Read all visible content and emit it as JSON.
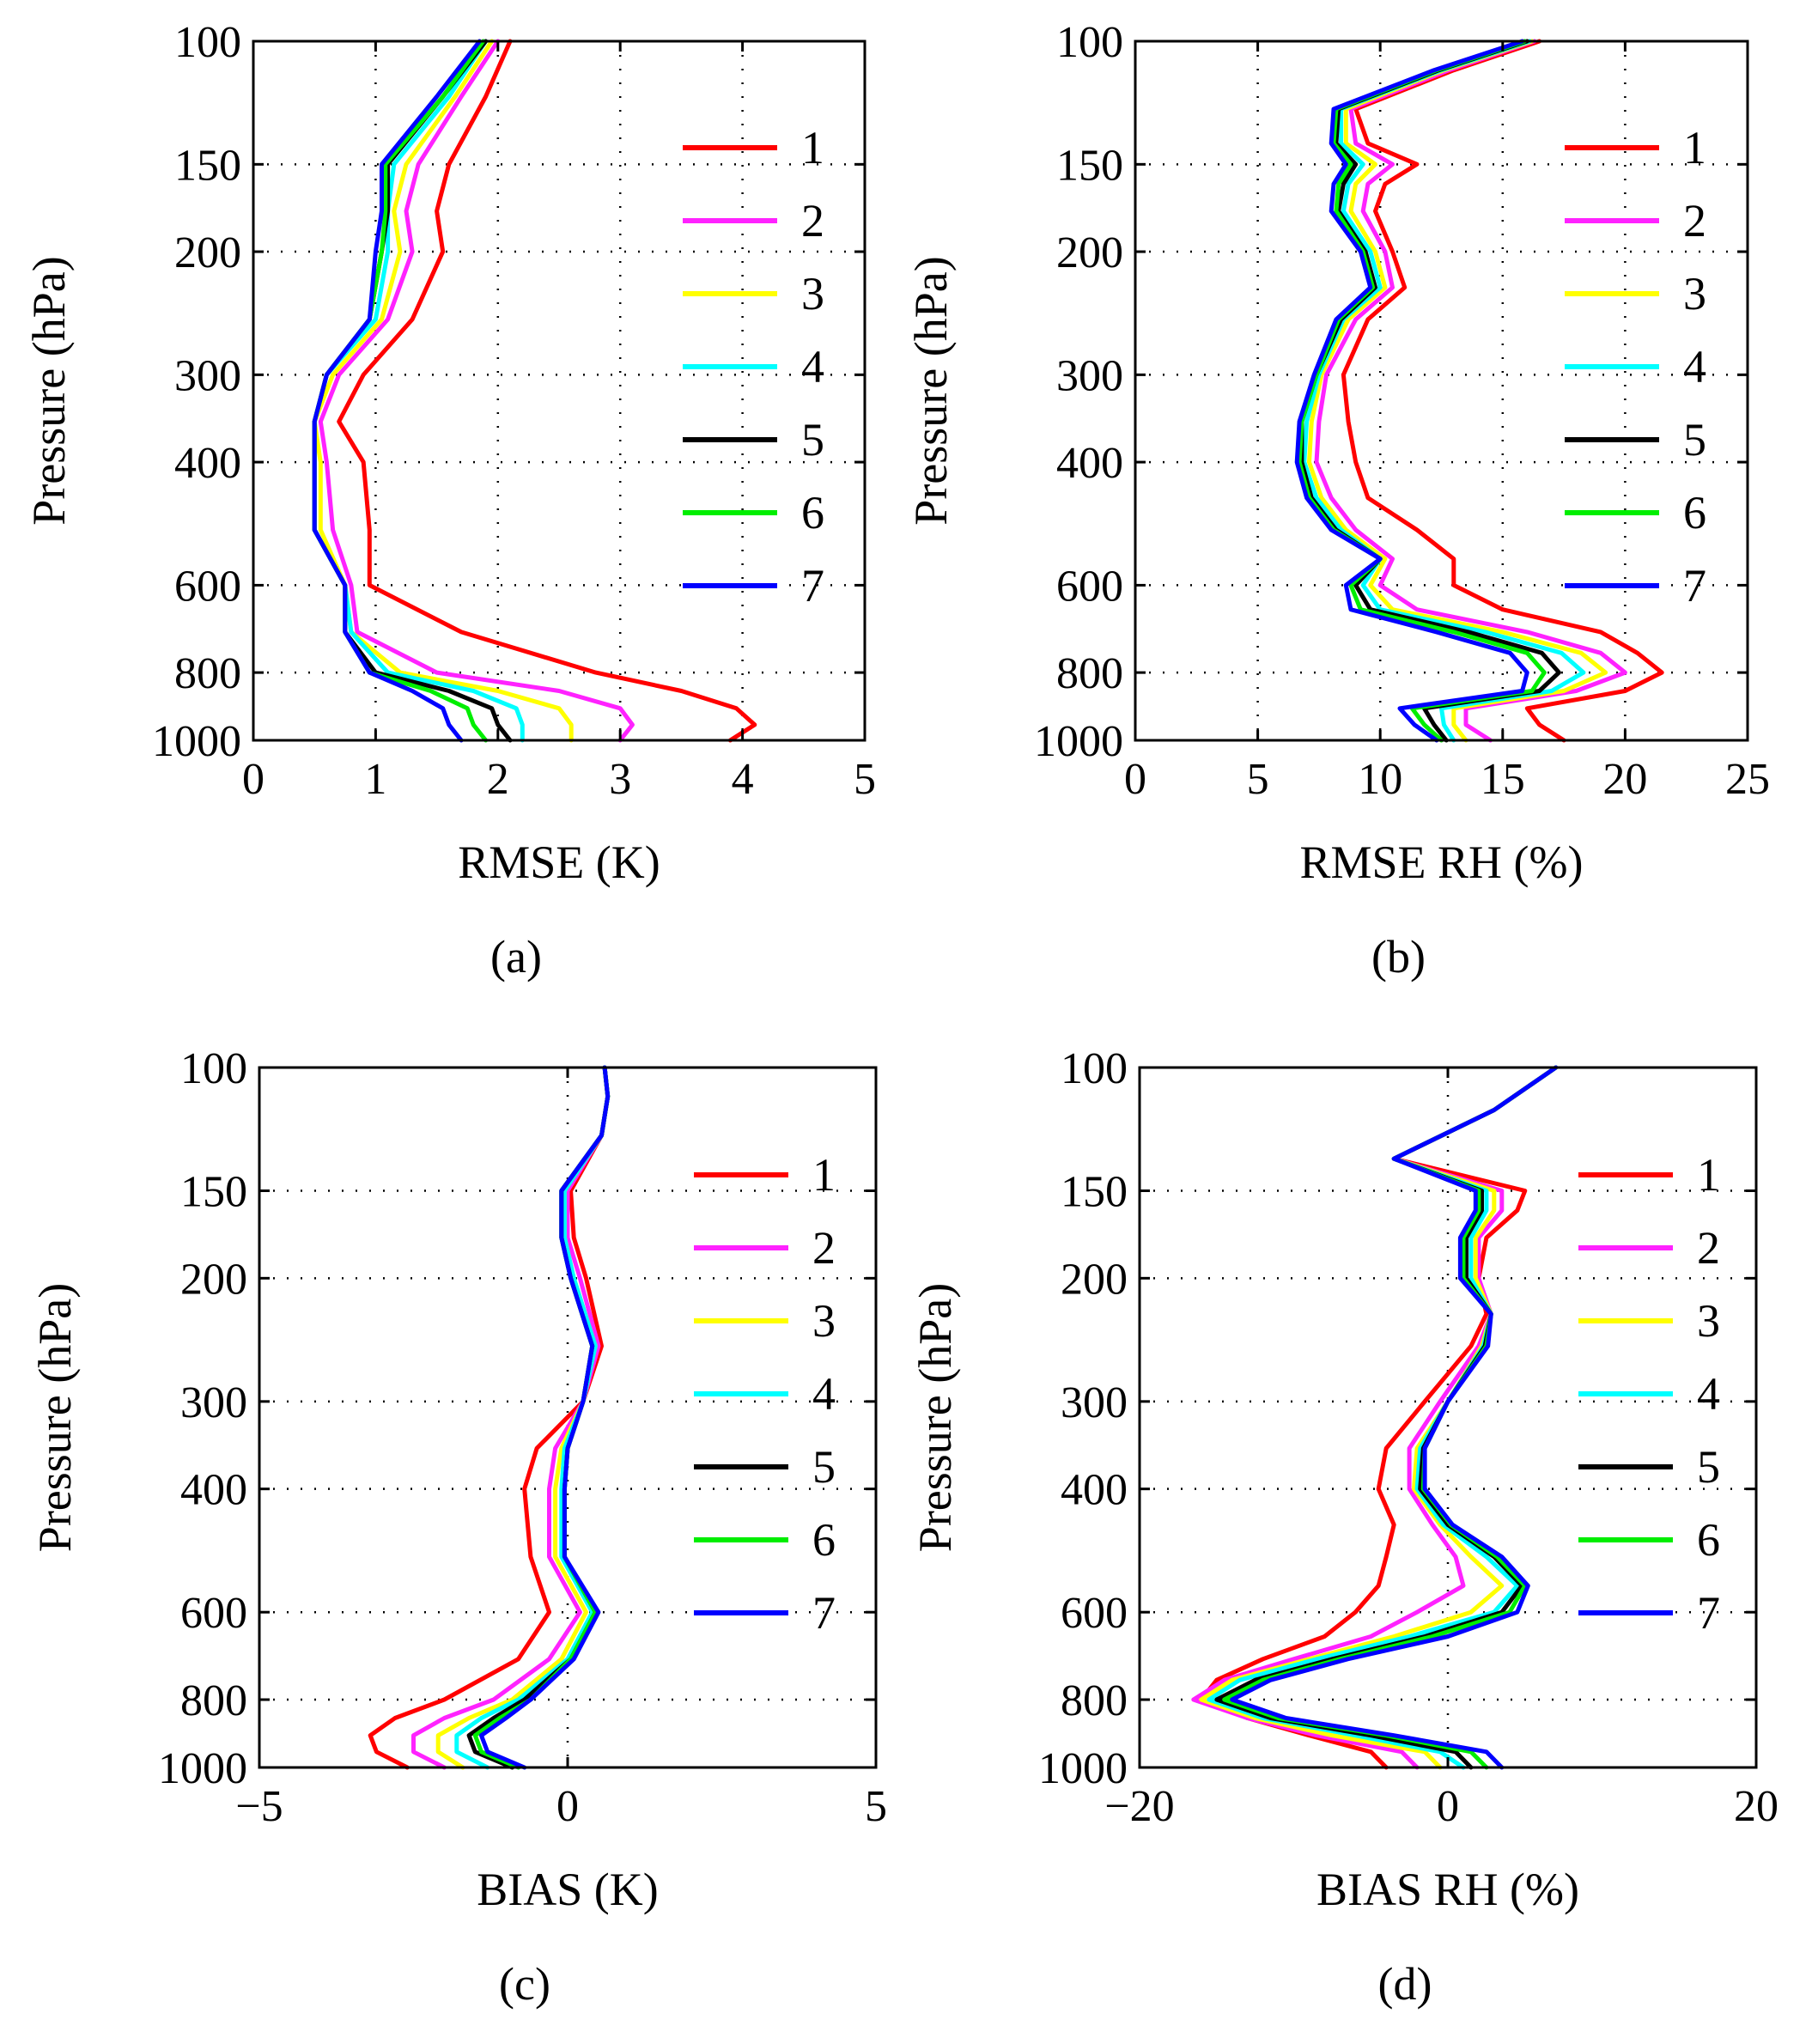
{
  "figure": {
    "series_names": [
      "1",
      "2",
      "3",
      "4",
      "5",
      "6",
      "7"
    ],
    "series_colors": [
      "#ff0000",
      "#ff22ff",
      "#ffff00",
      "#00ffff",
      "#000000",
      "#00ee00",
      "#0000ff"
    ]
  },
  "chart_data": [
    {
      "id": "a",
      "type": "line",
      "panel_label": "(a)",
      "title": "",
      "xlabel": "RMSE  (K)",
      "ylabel": "Pressure  (hPa)",
      "xlim": [
        0,
        5
      ],
      "xticks": [
        "0",
        "1",
        "2",
        "3",
        "4",
        "5"
      ],
      "xtick_values": [
        0,
        1,
        2,
        3,
        4,
        5
      ],
      "ylim": [
        100,
        1000
      ],
      "yscale": "log",
      "yticks": [
        "100",
        "150",
        "200",
        "300",
        "400",
        "600",
        "800",
        "1000"
      ],
      "ytick_values": [
        100,
        150,
        200,
        300,
        400,
        600,
        800,
        1000
      ],
      "grid": true,
      "legend_position": "right",
      "pressure": [
        100,
        120,
        150,
        175,
        200,
        250,
        300,
        350,
        400,
        500,
        600,
        700,
        800,
        850,
        900,
        950,
        1000
      ],
      "series": [
        {
          "name": "1",
          "values": [
            2.1,
            1.9,
            1.6,
            1.5,
            1.55,
            1.3,
            0.9,
            0.7,
            0.9,
            0.95,
            0.95,
            1.7,
            2.8,
            3.5,
            3.95,
            4.1,
            3.9
          ]
        },
        {
          "name": "2",
          "values": [
            2.0,
            1.7,
            1.35,
            1.25,
            1.3,
            1.1,
            0.7,
            0.55,
            0.6,
            0.65,
            0.8,
            0.85,
            1.5,
            2.5,
            3.0,
            3.1,
            3.0
          ]
        },
        {
          "name": "3",
          "values": [
            1.95,
            1.65,
            1.25,
            1.15,
            1.2,
            1.05,
            0.65,
            0.5,
            0.55,
            0.55,
            0.75,
            0.8,
            1.2,
            2.0,
            2.5,
            2.6,
            2.6
          ]
        },
        {
          "name": "4",
          "values": [
            1.9,
            1.6,
            1.15,
            1.1,
            1.1,
            1.0,
            0.6,
            0.5,
            0.5,
            0.5,
            0.75,
            0.8,
            1.1,
            1.8,
            2.15,
            2.2,
            2.2
          ]
        },
        {
          "name": "5",
          "values": [
            1.9,
            1.55,
            1.1,
            1.1,
            1.05,
            0.95,
            0.6,
            0.5,
            0.5,
            0.5,
            0.75,
            0.75,
            1.0,
            1.6,
            1.95,
            2.0,
            2.1
          ]
        },
        {
          "name": "6",
          "values": [
            1.88,
            1.55,
            1.08,
            1.08,
            1.05,
            0.95,
            0.6,
            0.5,
            0.5,
            0.5,
            0.75,
            0.75,
            0.95,
            1.45,
            1.75,
            1.8,
            1.9
          ]
        },
        {
          "name": "7",
          "values": [
            1.85,
            1.5,
            1.05,
            1.05,
            1.0,
            0.95,
            0.6,
            0.5,
            0.5,
            0.5,
            0.75,
            0.75,
            0.95,
            1.3,
            1.55,
            1.6,
            1.7
          ]
        }
      ]
    },
    {
      "id": "b",
      "type": "line",
      "panel_label": "(b)",
      "title": "",
      "xlabel": "RMSE RH  (%)",
      "ylabel": "Pressure  (hPa)",
      "xlim": [
        0,
        25
      ],
      "xticks": [
        "0",
        "5",
        "10",
        "15",
        "20",
        "25"
      ],
      "xtick_values": [
        0,
        5,
        10,
        15,
        20,
        25
      ],
      "ylim": [
        100,
        1000
      ],
      "yscale": "log",
      "yticks": [
        "100",
        "150",
        "200",
        "300",
        "400",
        "600",
        "800",
        "1000"
      ],
      "ytick_values": [
        100,
        150,
        200,
        300,
        400,
        600,
        800,
        1000
      ],
      "grid": true,
      "legend_position": "right",
      "pressure": [
        100,
        110,
        125,
        140,
        150,
        160,
        175,
        200,
        225,
        250,
        300,
        350,
        400,
        450,
        500,
        550,
        600,
        650,
        700,
        750,
        800,
        850,
        900,
        950,
        1000
      ],
      "series": [
        {
          "name": "1",
          "values": [
            16.5,
            13.0,
            9.0,
            9.5,
            11.5,
            10.2,
            9.8,
            10.5,
            11.0,
            9.5,
            8.5,
            8.7,
            9.0,
            9.5,
            11.5,
            13.0,
            13.0,
            15.0,
            19.0,
            20.5,
            21.5,
            20.0,
            16.0,
            16.5,
            17.5
          ]
        },
        {
          "name": "2",
          "values": [
            16.3,
            12.8,
            8.8,
            9.0,
            10.5,
            9.5,
            9.3,
            10.2,
            10.5,
            9.0,
            7.8,
            7.5,
            7.4,
            8.0,
            9.0,
            10.5,
            10.0,
            11.5,
            16.0,
            19.0,
            20.0,
            18.0,
            13.5,
            13.5,
            14.5
          ]
        },
        {
          "name": "3",
          "values": [
            16.2,
            12.6,
            8.6,
            8.6,
            9.8,
            9.0,
            8.8,
            9.8,
            10.2,
            8.7,
            7.6,
            7.2,
            7.1,
            7.6,
            8.6,
            10.2,
            9.6,
            10.5,
            15.0,
            18.2,
            19.2,
            17.5,
            13.0,
            13.0,
            13.5
          ]
        },
        {
          "name": "4",
          "values": [
            16.1,
            12.5,
            8.4,
            8.4,
            9.3,
            8.7,
            8.5,
            9.6,
            10.0,
            8.5,
            7.5,
            7.0,
            6.9,
            7.4,
            8.4,
            10.0,
            9.3,
            10.0,
            14.3,
            17.4,
            18.3,
            17.0,
            12.5,
            12.6,
            13.0
          ]
        },
        {
          "name": "5",
          "values": [
            16.0,
            12.4,
            8.3,
            8.2,
            9.0,
            8.5,
            8.3,
            9.4,
            9.8,
            8.4,
            7.4,
            6.8,
            6.8,
            7.2,
            8.2,
            10.0,
            9.0,
            9.6,
            13.6,
            16.6,
            17.3,
            16.5,
            11.8,
            12.2,
            12.7
          ]
        },
        {
          "name": "6",
          "values": [
            15.9,
            12.3,
            8.2,
            8.1,
            8.8,
            8.3,
            8.2,
            9.3,
            9.7,
            8.3,
            7.4,
            6.8,
            6.7,
            7.1,
            8.1,
            10.0,
            8.8,
            9.2,
            13.0,
            16.0,
            16.7,
            16.2,
            11.3,
            11.8,
            12.5
          ]
        },
        {
          "name": "7",
          "values": [
            15.8,
            12.2,
            8.1,
            8.0,
            8.6,
            8.1,
            8.0,
            9.2,
            9.6,
            8.2,
            7.3,
            6.7,
            6.6,
            7.0,
            8.0,
            10.0,
            8.6,
            8.8,
            12.3,
            15.3,
            16.0,
            15.8,
            10.8,
            11.4,
            12.3
          ]
        }
      ]
    },
    {
      "id": "c",
      "type": "line",
      "panel_label": "(c)",
      "title": "",
      "xlabel": "BIAS  (K)",
      "ylabel": "Pressure  (hPa)",
      "xlim": [
        -5,
        5
      ],
      "xticks": [
        "−5",
        "0",
        "5"
      ],
      "xtick_values": [
        -5,
        0,
        5
      ],
      "ylim": [
        100,
        1000
      ],
      "yscale": "log",
      "yticks": [
        "100",
        "150",
        "200",
        "300",
        "400",
        "600",
        "800",
        "1000"
      ],
      "ytick_values": [
        100,
        150,
        200,
        300,
        400,
        600,
        800,
        1000
      ],
      "grid": true,
      "legend_position": "right",
      "pressure": [
        100,
        110,
        125,
        150,
        175,
        200,
        250,
        300,
        350,
        400,
        500,
        600,
        700,
        800,
        850,
        900,
        950,
        1000
      ],
      "series": [
        {
          "name": "1",
          "values": [
            0.6,
            0.65,
            0.55,
            0.05,
            0.1,
            0.3,
            0.55,
            0.25,
            -0.5,
            -0.7,
            -0.6,
            -0.3,
            -0.8,
            -2.0,
            -2.8,
            -3.2,
            -3.1,
            -2.6
          ]
        },
        {
          "name": "2",
          "values": [
            0.6,
            0.65,
            0.55,
            0.0,
            0.0,
            0.2,
            0.5,
            0.25,
            -0.2,
            -0.3,
            -0.3,
            0.2,
            -0.3,
            -1.2,
            -2.0,
            -2.5,
            -2.5,
            -2.0
          ]
        },
        {
          "name": "3",
          "values": [
            0.6,
            0.65,
            0.55,
            -0.05,
            -0.05,
            0.1,
            0.45,
            0.25,
            -0.1,
            -0.2,
            -0.2,
            0.3,
            -0.1,
            -0.9,
            -1.6,
            -2.1,
            -2.1,
            -1.7
          ]
        },
        {
          "name": "4",
          "values": [
            0.6,
            0.65,
            0.55,
            -0.05,
            -0.05,
            0.1,
            0.45,
            0.25,
            -0.05,
            -0.1,
            -0.1,
            0.4,
            0.0,
            -0.8,
            -1.4,
            -1.8,
            -1.8,
            -1.3
          ]
        },
        {
          "name": "5",
          "values": [
            0.6,
            0.65,
            0.55,
            -0.1,
            -0.1,
            0.05,
            0.4,
            0.25,
            0.0,
            -0.05,
            -0.05,
            0.45,
            0.05,
            -0.7,
            -1.2,
            -1.6,
            -1.5,
            -0.9
          ]
        },
        {
          "name": "6",
          "values": [
            0.6,
            0.65,
            0.55,
            -0.1,
            -0.1,
            0.05,
            0.4,
            0.25,
            0.0,
            -0.05,
            -0.05,
            0.45,
            0.05,
            -0.6,
            -1.1,
            -1.5,
            -1.4,
            -0.8
          ]
        },
        {
          "name": "7",
          "values": [
            0.6,
            0.65,
            0.55,
            -0.1,
            -0.1,
            0.05,
            0.4,
            0.25,
            0.0,
            -0.05,
            -0.05,
            0.5,
            0.1,
            -0.6,
            -1.0,
            -1.4,
            -1.3,
            -0.7
          ]
        }
      ]
    },
    {
      "id": "d",
      "type": "line",
      "panel_label": "(d)",
      "title": "",
      "xlabel": "BIAS RH  (%)",
      "ylabel": "Pressure  (hPa)",
      "xlim": [
        -20,
        20
      ],
      "xticks": [
        "−20",
        "0",
        "20"
      ],
      "xtick_values": [
        -20,
        0,
        20
      ],
      "ylim": [
        100,
        1000
      ],
      "yscale": "log",
      "yticks": [
        "100",
        "150",
        "200",
        "300",
        "400",
        "600",
        "800",
        "1000"
      ],
      "ytick_values": [
        100,
        150,
        200,
        300,
        400,
        600,
        800,
        1000
      ],
      "grid": true,
      "legend_position": "right",
      "pressure": [
        100,
        115,
        135,
        150,
        160,
        175,
        200,
        225,
        250,
        300,
        350,
        400,
        450,
        500,
        550,
        600,
        650,
        700,
        750,
        800,
        850,
        900,
        950,
        1000
      ],
      "series": [
        {
          "name": "1",
          "values": [
            7.0,
            3.0,
            -3.5,
            5.0,
            4.5,
            2.5,
            2.0,
            2.5,
            1.5,
            -1.5,
            -4.0,
            -4.5,
            -3.5,
            -4.0,
            -4.5,
            -6.0,
            -8.0,
            -12.0,
            -15.0,
            -16.0,
            -13.0,
            -9.0,
            -5.0,
            -4.0
          ]
        },
        {
          "name": "2",
          "values": [
            7.0,
            3.0,
            -3.5,
            3.5,
            3.5,
            2.0,
            2.0,
            2.8,
            2.0,
            -0.5,
            -2.5,
            -2.5,
            -1.0,
            0.5,
            1.0,
            -2.0,
            -5.0,
            -10.0,
            -14.5,
            -16.5,
            -13.0,
            -8.5,
            -3.0,
            -2.0
          ]
        },
        {
          "name": "3",
          "values": [
            7.0,
            3.0,
            -3.5,
            3.0,
            3.0,
            1.8,
            1.8,
            2.8,
            2.2,
            0.0,
            -2.0,
            -2.2,
            -0.5,
            1.5,
            3.5,
            1.5,
            -3.5,
            -9.0,
            -14.0,
            -16.0,
            -12.5,
            -7.5,
            -1.5,
            -0.5
          ]
        },
        {
          "name": "4",
          "values": [
            7.0,
            3.0,
            -3.5,
            2.5,
            2.5,
            1.5,
            1.5,
            2.8,
            2.3,
            0.0,
            -1.8,
            -2.0,
            -0.3,
            2.5,
            4.5,
            3.0,
            -2.5,
            -8.5,
            -13.5,
            -15.5,
            -12.0,
            -6.0,
            -0.5,
            1.0
          ]
        },
        {
          "name": "5",
          "values": [
            7.0,
            3.0,
            -3.5,
            2.2,
            2.2,
            1.2,
            1.2,
            2.8,
            2.4,
            0.0,
            -1.6,
            -1.8,
            0.0,
            3.0,
            4.8,
            3.5,
            -1.5,
            -7.5,
            -12.5,
            -15.0,
            -11.5,
            -5.0,
            0.5,
            1.5
          ]
        },
        {
          "name": "6",
          "values": [
            7.0,
            3.0,
            -3.5,
            2.0,
            2.0,
            1.0,
            1.0,
            2.8,
            2.5,
            0.0,
            -1.5,
            -1.6,
            0.2,
            3.2,
            5.0,
            4.0,
            -1.0,
            -7.0,
            -12.0,
            -14.5,
            -11.0,
            -4.0,
            1.5,
            2.5
          ]
        },
        {
          "name": "7",
          "values": [
            7.0,
            3.0,
            -3.5,
            1.8,
            1.8,
            0.8,
            0.8,
            2.8,
            2.6,
            0.0,
            -1.5,
            -1.5,
            0.3,
            3.5,
            5.2,
            4.5,
            0.0,
            -6.5,
            -11.5,
            -14.0,
            -10.5,
            -3.5,
            2.5,
            3.5
          ]
        }
      ]
    }
  ]
}
